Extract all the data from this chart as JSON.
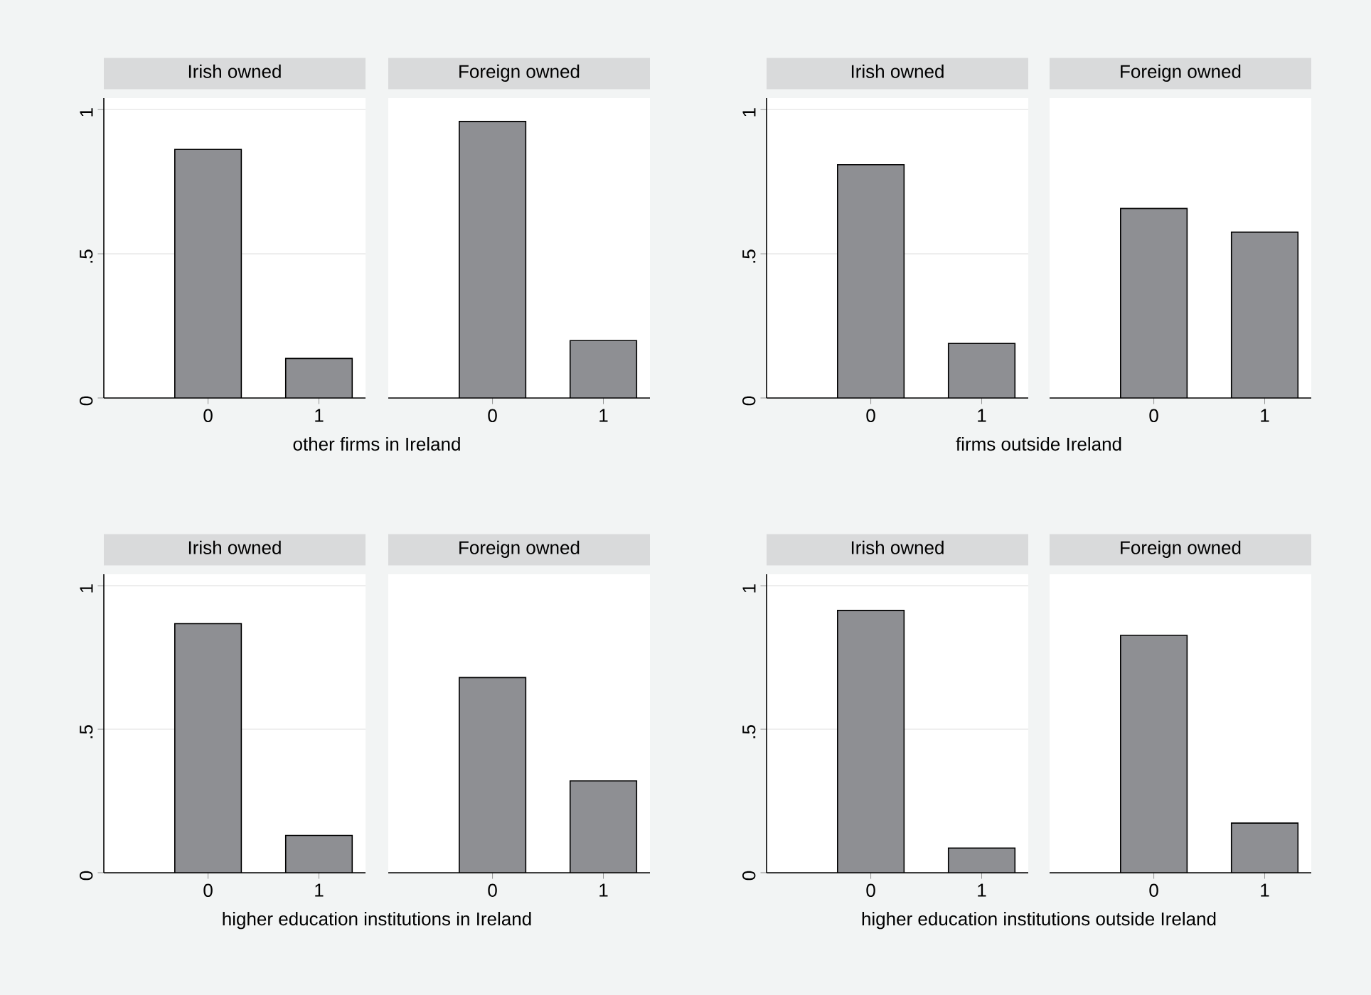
{
  "chart_data": [
    {
      "type": "bar",
      "title": "Irish owned",
      "xlabel": "other firms in Ireland",
      "categories": [
        "0",
        "1"
      ],
      "values": [
        0.862,
        0.137
      ],
      "color": "#8e8f93",
      "ylim": [
        0,
        1.04
      ],
      "yticks": [
        0,
        {
          "value": 0.5,
          "label": ".5"
        },
        1
      ],
      "grid": "y"
    },
    {
      "type": "bar",
      "title": "Foreign owned",
      "categories": [
        "0",
        "1"
      ],
      "values": [
        0.959,
        0.199
      ],
      "color": "#8e8f93",
      "ylim": [
        0,
        1.04
      ],
      "yticks": [
        {
          "value": 0,
          "label": null
        },
        {
          "value": 0.5,
          "label": null
        },
        {
          "value": 1,
          "label": null
        }
      ],
      "grid": "y",
      "tick_labels": "x"
    },
    {
      "type": "bar",
      "title": "Irish owned",
      "xlabel": "firms outside Ireland",
      "categories": [
        "0",
        "1"
      ],
      "values": [
        0.809,
        0.189
      ],
      "color": "#8e8f93",
      "ylim": [
        0,
        1.04
      ],
      "yticks": [
        0,
        {
          "value": 0.5,
          "label": ".5"
        },
        1
      ],
      "grid": "y"
    },
    {
      "type": "bar",
      "title": "Foreign owned",
      "categories": [
        "0",
        "1"
      ],
      "values": [
        0.657,
        0.575
      ],
      "color": "#8e8f93",
      "ylim": [
        0,
        1.04
      ],
      "yticks": [
        {
          "value": 0,
          "label": null
        },
        {
          "value": 0.5,
          "label": null
        },
        {
          "value": 1,
          "label": null
        }
      ],
      "grid": "y",
      "tick_labels": "x"
    },
    {
      "type": "bar",
      "title": "Irish owned",
      "xlabel": "higher education institutions in Ireland",
      "categories": [
        "0",
        "1"
      ],
      "values": [
        0.868,
        0.13
      ],
      "color": "#8e8f93",
      "ylim": [
        0,
        1.04
      ],
      "yticks": [
        0,
        {
          "value": 0.5,
          "label": ".5"
        },
        1
      ],
      "grid": "y"
    },
    {
      "type": "bar",
      "title": "Foreign owned",
      "categories": [
        "0",
        "1"
      ],
      "values": [
        0.68,
        0.32
      ],
      "color": "#8e8f93",
      "ylim": [
        0,
        1.04
      ],
      "yticks": [
        {
          "value": 0,
          "label": null
        },
        {
          "value": 0.5,
          "label": null
        },
        {
          "value": 1,
          "label": null
        }
      ],
      "grid": "y",
      "tick_labels": "x"
    },
    {
      "type": "bar",
      "title": "Irish owned",
      "xlabel": "higher education institutions outside Ireland",
      "categories": [
        "0",
        "1"
      ],
      "values": [
        0.914,
        0.086
      ],
      "color": "#8e8f93",
      "ylim": [
        0,
        1.04
      ],
      "yticks": [
        0,
        {
          "value": 0.5,
          "label": ".5"
        },
        1
      ],
      "grid": "y"
    },
    {
      "type": "bar",
      "title": "Foreign owned",
      "categories": [
        "0",
        "1"
      ],
      "values": [
        0.827,
        0.173
      ],
      "color": "#8e8f93",
      "ylim": [
        0,
        1.04
      ],
      "yticks": [
        {
          "value": 0,
          "label": null
        },
        {
          "value": 0.5,
          "label": null
        },
        {
          "value": 1,
          "label": null
        }
      ],
      "grid": "y",
      "tick_labels": "x"
    }
  ]
}
